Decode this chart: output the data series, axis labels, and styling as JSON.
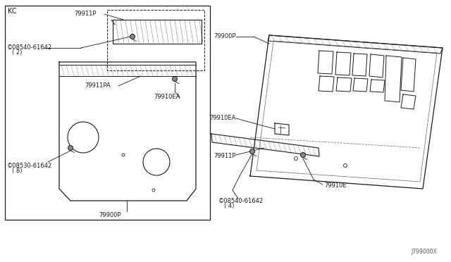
{
  "bg_color": "#ffffff",
  "line_color": "#1a1a1a",
  "hatch_color": "#999999",
  "diagram_id": "J799000X",
  "box_label": "KC",
  "labels": {
    "79911P_left": "79911P",
    "08540_left": "©08540-61642",
    "08540_left_qty": "( 2)",
    "79911PA": "79911PA",
    "79910EA_left": "79910EA",
    "08530_left": "©08530-61642",
    "08530_left_qty": "( 8)",
    "79900P_left": "79900P",
    "79900P_right": "79900P",
    "79910EA_right": "79910EA",
    "79911P_right": "79911P",
    "08540_right": "©08540-61642",
    "08540_right_qty": "( 4)",
    "79910E": "79910E"
  }
}
